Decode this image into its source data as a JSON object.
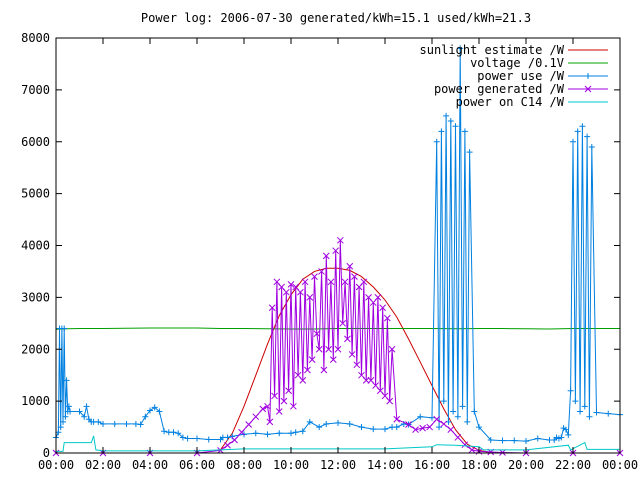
{
  "chart_data": {
    "type": "line",
    "title": "Power log: 2006-07-30 generated/kWh=15.1 used/kWh=21.3",
    "xlabel": "",
    "ylabel": "",
    "xlim": [
      0,
      24
    ],
    "ylim": [
      0,
      8000
    ],
    "x_ticks": [
      0,
      2,
      4,
      6,
      8,
      10,
      12,
      14,
      16,
      18,
      20,
      22,
      24
    ],
    "x_tick_labels": [
      "00:00",
      "02:00",
      "04:00",
      "06:00",
      "08:00",
      "10:00",
      "12:00",
      "14:00",
      "16:00",
      "18:00",
      "20:00",
      "22:00",
      "00:00"
    ],
    "y_ticks": [
      0,
      1000,
      2000,
      3000,
      4000,
      5000,
      6000,
      7000,
      8000
    ],
    "y_tick_labels": [
      "0",
      "1000",
      "2000",
      "3000",
      "4000",
      "5000",
      "6000",
      "7000",
      "8000"
    ],
    "grid": false,
    "legend_position": "top-right",
    "series": [
      {
        "name": "sunlight estimate /W",
        "color": "#cc0000",
        "style": "line",
        "x": [
          6.9,
          7.5,
          8,
          8.5,
          9,
          9.5,
          10,
          10.5,
          11,
          11.5,
          12,
          12.5,
          13,
          13.5,
          14,
          14.5,
          15,
          15.5,
          16,
          16.5,
          17,
          17.5,
          18,
          18.5,
          19
        ],
        "y": [
          0,
          380,
          900,
          1500,
          2100,
          2650,
          3050,
          3350,
          3500,
          3560,
          3560,
          3520,
          3400,
          3200,
          2950,
          2620,
          2200,
          1750,
          1300,
          850,
          450,
          170,
          50,
          10,
          0
        ]
      },
      {
        "name": "voltage /0.1V",
        "color": "#00a000",
        "style": "line",
        "x": [
          0,
          0.1,
          1,
          2,
          3,
          4,
          5,
          6,
          7,
          8,
          9,
          10,
          11,
          12,
          13,
          14,
          15,
          16,
          17,
          18,
          19,
          20,
          21,
          22,
          23,
          24
        ],
        "y": [
          2380,
          2390,
          2400,
          2400,
          2405,
          2410,
          2410,
          2410,
          2400,
          2400,
          2395,
          2390,
          2390,
          2400,
          2400,
          2400,
          2400,
          2400,
          2395,
          2400,
          2400,
          2395,
          2390,
          2400,
          2400,
          2400
        ]
      },
      {
        "name": "power use /W",
        "color": "#0080e0",
        "style": "linespoints",
        "x": [
          0,
          0.1,
          0.15,
          0.2,
          0.25,
          0.3,
          0.35,
          0.4,
          0.45,
          0.5,
          0.55,
          0.6,
          1.0,
          1.2,
          1.3,
          1.4,
          1.5,
          1.6,
          1.8,
          2.0,
          2.5,
          3.0,
          3.4,
          3.6,
          3.8,
          4.0,
          4.2,
          4.4,
          4.6,
          4.8,
          5.0,
          5.2,
          5.4,
          5.6,
          6.0,
          6.5,
          7.0,
          7.1,
          7.3,
          7.5,
          8.0,
          8.5,
          9.0,
          9.5,
          10.0,
          10.2,
          10.5,
          10.8,
          11.2,
          11.5,
          12.0,
          12.5,
          13.0,
          13.5,
          14.0,
          14.3,
          14.5,
          14.8,
          15.0,
          15.5,
          16.0,
          16.2,
          16.3,
          16.4,
          16.5,
          16.6,
          16.7,
          16.8,
          16.9,
          17.0,
          17.1,
          17.2,
          17.3,
          17.4,
          17.5,
          17.6,
          17.8,
          18.0,
          18.5,
          19.0,
          19.5,
          20.0,
          20.5,
          21.0,
          21.2,
          21.3,
          21.4,
          21.5,
          21.6,
          21.7,
          21.8,
          21.9,
          22.0,
          22.1,
          22.2,
          22.3,
          22.4,
          22.5,
          22.6,
          22.7,
          22.8,
          23.0,
          23.5,
          24.0
        ],
        "y": [
          300,
          400,
          2400,
          500,
          2400,
          600,
          2400,
          700,
          1400,
          800,
          900,
          800,
          800,
          700,
          900,
          650,
          600,
          600,
          600,
          560,
          560,
          560,
          560,
          550,
          700,
          820,
          880,
          800,
          420,
          400,
          400,
          380,
          300,
          280,
          280,
          260,
          260,
          300,
          300,
          320,
          360,
          380,
          360,
          380,
          380,
          400,
          420,
          600,
          500,
          560,
          580,
          560,
          500,
          460,
          460,
          500,
          500,
          560,
          550,
          700,
          680,
          6000,
          500,
          6200,
          1000,
          6500,
          600,
          6400,
          800,
          6300,
          700,
          7800,
          900,
          6200,
          600,
          5800,
          800,
          500,
          250,
          240,
          240,
          230,
          280,
          250,
          250,
          300,
          280,
          300,
          480,
          450,
          350,
          1200,
          6000,
          1000,
          6200,
          800,
          6300,
          900,
          6100,
          700,
          5900,
          780,
          760,
          740
        ]
      },
      {
        "name": "power generated /W",
        "color": "#a000e0",
        "style": "linespoints",
        "x": [
          0,
          2,
          4,
          6,
          7.0,
          7.3,
          7.6,
          7.9,
          8.2,
          8.5,
          8.8,
          9.0,
          9.1,
          9.2,
          9.3,
          9.4,
          9.5,
          9.6,
          9.7,
          9.8,
          9.9,
          10.0,
          10.1,
          10.2,
          10.3,
          10.4,
          10.5,
          10.6,
          10.7,
          10.8,
          10.9,
          11.0,
          11.1,
          11.2,
          11.3,
          11.4,
          11.5,
          11.6,
          11.7,
          11.8,
          11.9,
          12.0,
          12.1,
          12.2,
          12.3,
          12.4,
          12.5,
          12.6,
          12.7,
          12.8,
          12.9,
          13.0,
          13.1,
          13.2,
          13.3,
          13.4,
          13.5,
          13.6,
          13.7,
          13.8,
          13.9,
          14.0,
          14.1,
          14.2,
          14.3,
          14.5,
          15.0,
          15.3,
          15.6,
          15.9,
          16.2,
          16.5,
          16.8,
          17.1,
          17.4,
          17.7,
          18.0,
          18.5,
          19.0,
          20,
          22,
          24
        ],
        "y": [
          0,
          0,
          0,
          0,
          50,
          150,
          250,
          400,
          550,
          700,
          850,
          900,
          600,
          2800,
          1100,
          3300,
          800,
          3200,
          1000,
          3100,
          1200,
          3250,
          900,
          3200,
          1500,
          3100,
          1400,
          3300,
          1600,
          3000,
          1800,
          3400,
          2300,
          2000,
          3500,
          1600,
          3800,
          2000,
          3300,
          1800,
          3900,
          2000,
          4100,
          2500,
          3300,
          2200,
          3600,
          1900,
          3400,
          1700,
          3200,
          1500,
          3300,
          1400,
          3000,
          1400,
          2900,
          1300,
          3000,
          1200,
          2800,
          1100,
          2600,
          1000,
          2000,
          650,
          550,
          450,
          480,
          500,
          650,
          560,
          450,
          300,
          160,
          60,
          30,
          20,
          10,
          0,
          0,
          0
        ]
      },
      {
        "name": "power on C14 /W",
        "color": "#00c8c8",
        "style": "line",
        "x": [
          0,
          0.3,
          0.35,
          1.5,
          1.6,
          1.7,
          2,
          4,
          6,
          7,
          8,
          10,
          12,
          14,
          16,
          16.2,
          17,
          18,
          18.2,
          20,
          21.8,
          21.9,
          22.5,
          22.6,
          24
        ],
        "y": [
          30,
          30,
          200,
          200,
          330,
          60,
          40,
          40,
          40,
          60,
          80,
          80,
          80,
          80,
          120,
          160,
          150,
          120,
          60,
          60,
          150,
          60,
          200,
          70,
          70
        ]
      }
    ]
  }
}
